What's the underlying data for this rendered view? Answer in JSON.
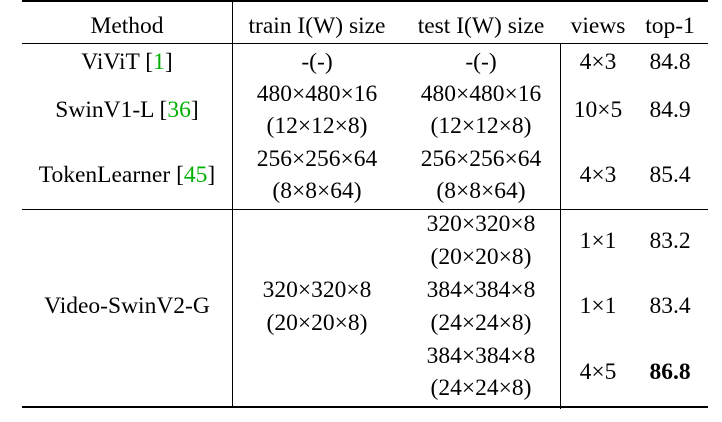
{
  "table": {
    "headers": [
      "Method",
      "train I(W) size",
      "test I(W) size",
      "views",
      "top-1"
    ],
    "rows": [
      {
        "method": "ViViT",
        "cite": "1",
        "train": [
          "-(-)"
        ],
        "test": [
          "-(-)"
        ],
        "views": "4×3",
        "top1": "84.8"
      },
      {
        "method": "SwinV1-L",
        "cite": "36",
        "train": [
          "480×480×16",
          "(12×12×8)"
        ],
        "test": [
          "480×480×16",
          "(12×12×8)"
        ],
        "views": "10×5",
        "top1": "84.9"
      },
      {
        "method": "TokenLearner",
        "cite": "45",
        "train": [
          "256×256×64",
          "(8×8×64)"
        ],
        "test": [
          "256×256×64",
          "(8×8×64)"
        ],
        "views": "4×3",
        "top1": "85.4"
      }
    ],
    "group": {
      "method": "Video-SwinV2-G",
      "train": [
        "320×320×8",
        "(20×20×8)"
      ],
      "subrows": [
        {
          "test": [
            "320×320×8",
            "(20×20×8)"
          ],
          "views": "1×1",
          "top1": "83.2"
        },
        {
          "test": [
            "384×384×8",
            "(24×24×8)"
          ],
          "views": "1×1",
          "top1": "83.4"
        },
        {
          "test": [
            "384×384×8",
            "(24×24×8)"
          ],
          "views": "4×5",
          "top1": "86.8",
          "bold": true
        }
      ]
    }
  }
}
